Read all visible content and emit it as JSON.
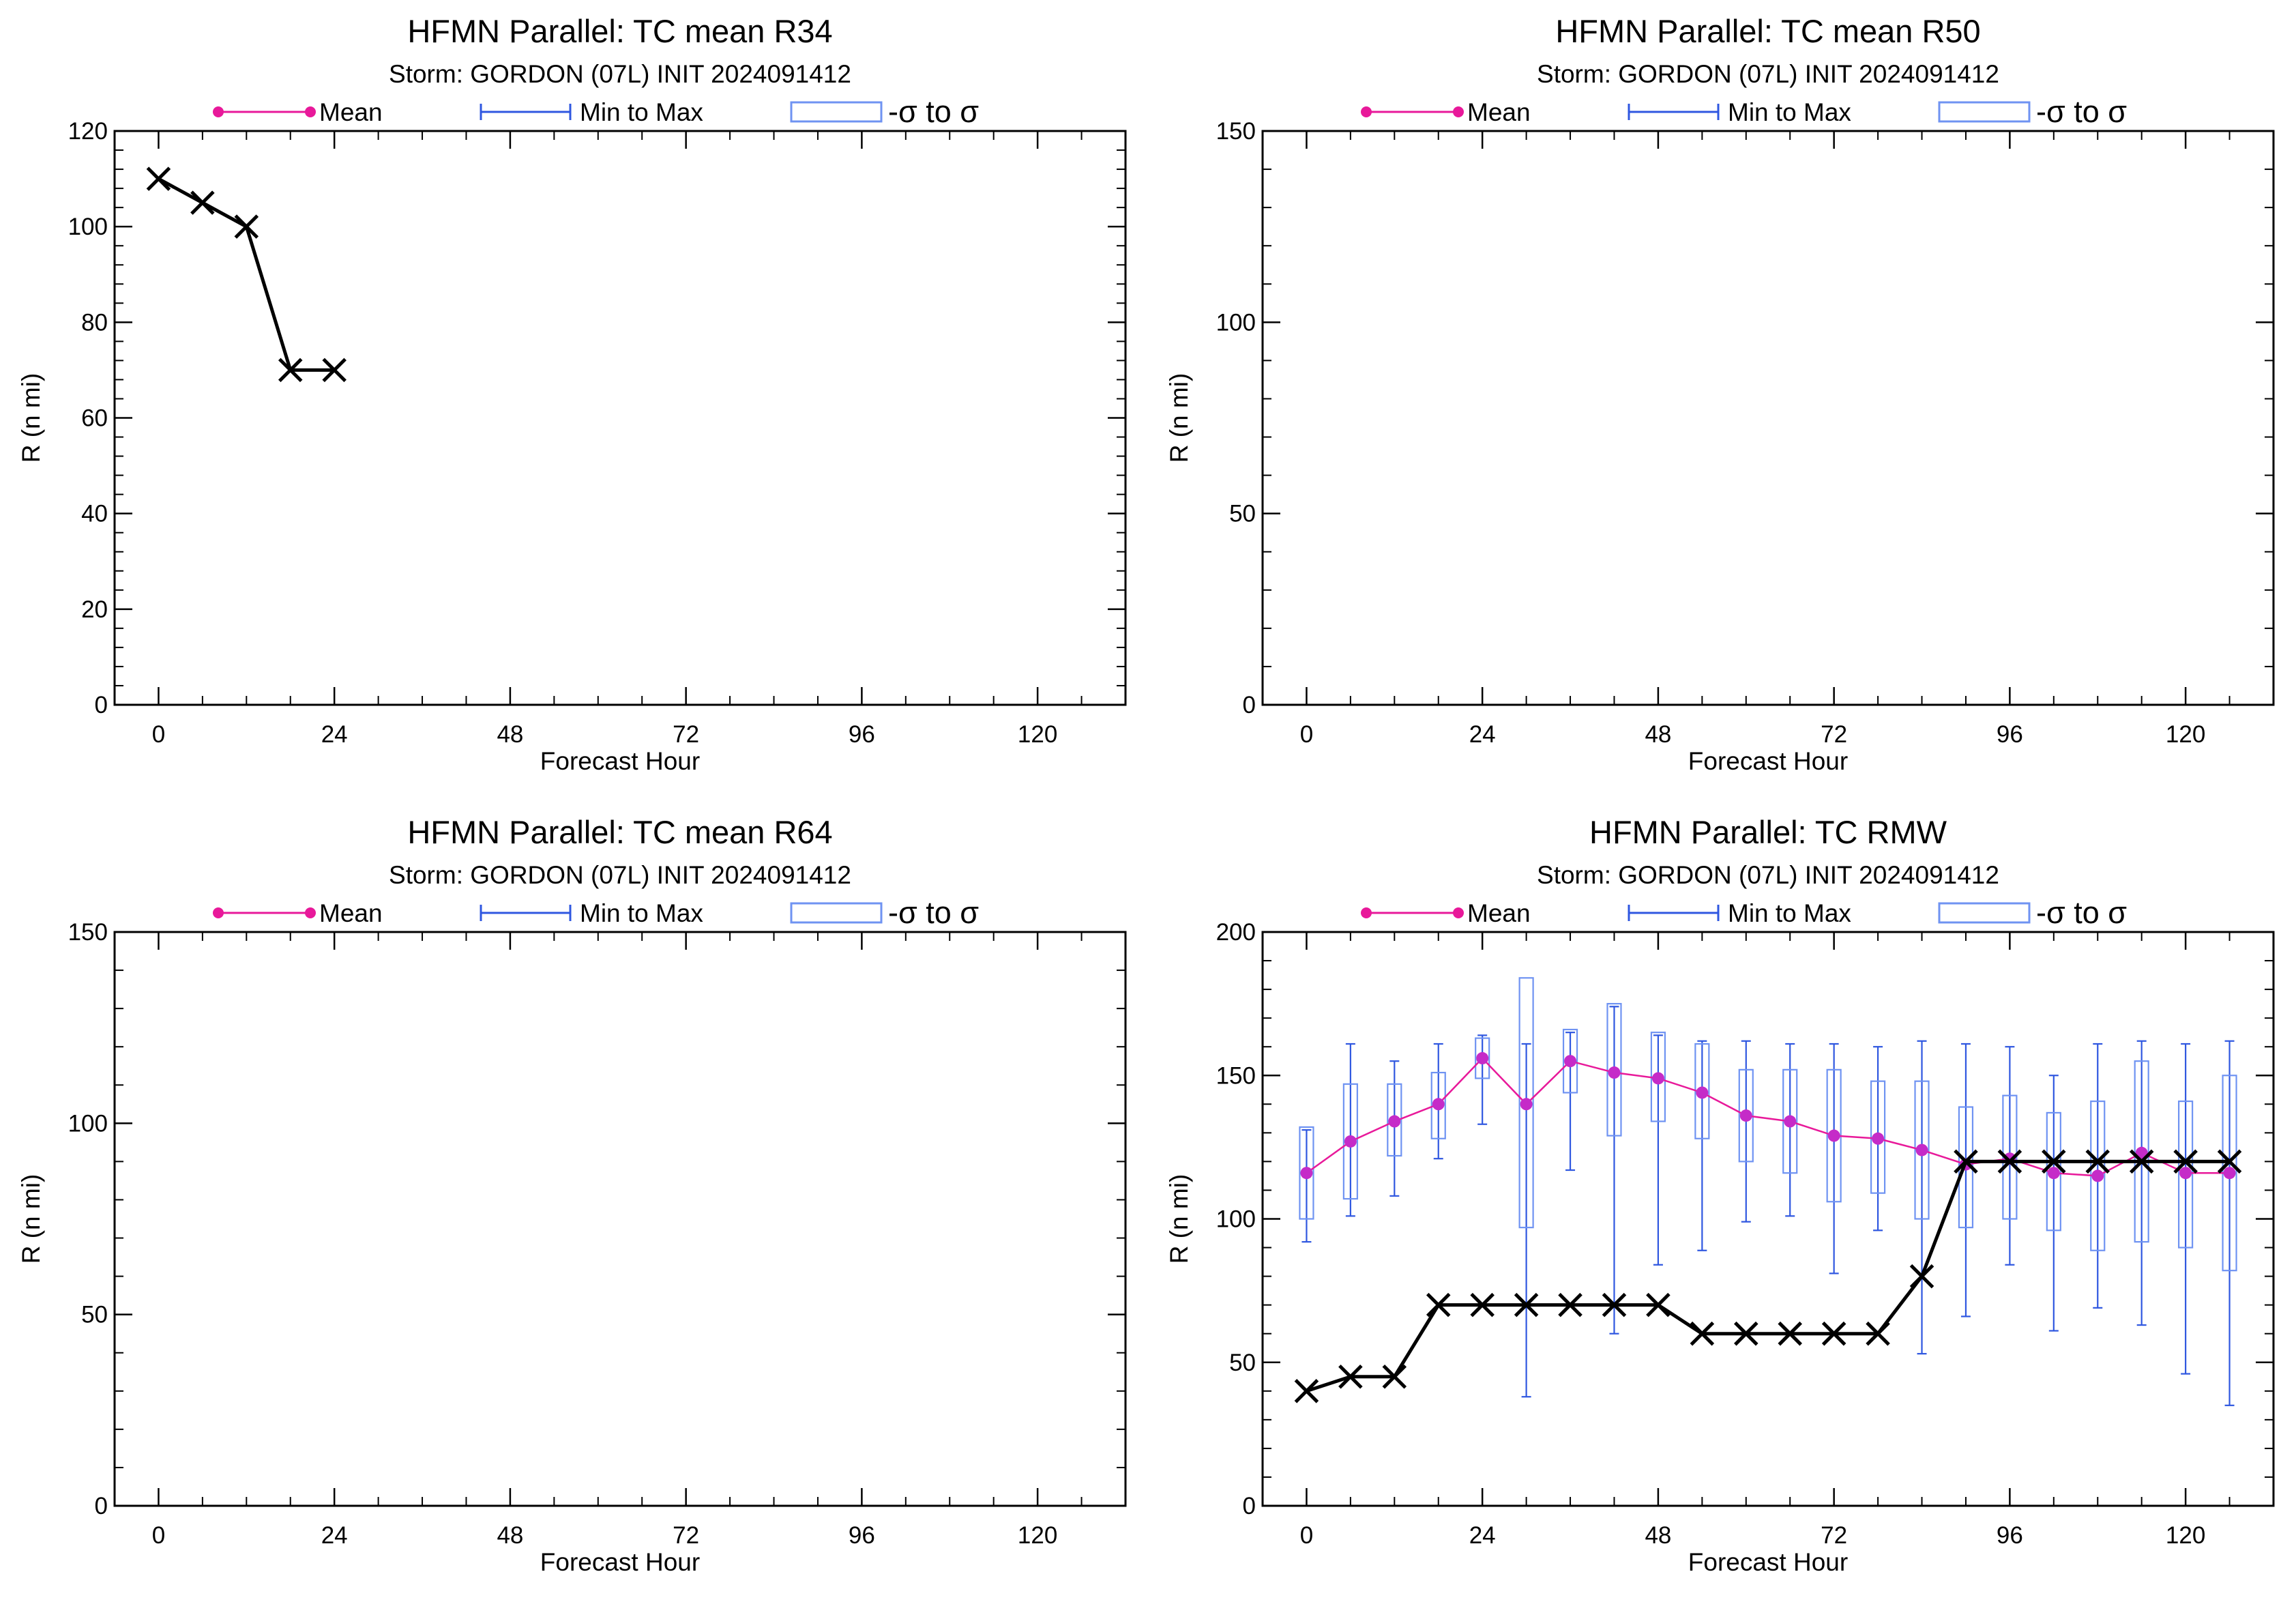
{
  "colors": {
    "mean": "#e8199a",
    "mean_marker": "#c52bc8",
    "minmax": "#2f57e0",
    "sigma_box": "#6f93f2",
    "obs": "#000000"
  },
  "legend": {
    "mean_label": "Mean",
    "minmax_label": "Min to Max",
    "sigma_label": "-σ to σ"
  },
  "chart_data": [
    {
      "type": "line",
      "title": "HFMN Parallel: TC mean R34",
      "subtitle": "Storm: GORDON (07L) INIT 2024091412",
      "xlabel": "Forecast Hour",
      "ylabel": "R (n mi)",
      "xlim": [
        -6,
        132
      ],
      "ylim": [
        0,
        120
      ],
      "xticks": [
        0,
        24,
        48,
        72,
        96,
        120
      ],
      "yticks": [
        0,
        20,
        40,
        60,
        80,
        100,
        120
      ],
      "legend_position": "top",
      "observed": {
        "x": [
          0,
          6,
          12,
          18,
          24
        ],
        "y": [
          110,
          105,
          100,
          70,
          70
        ]
      },
      "ensemble": null
    },
    {
      "type": "line",
      "title": "HFMN Parallel: TC mean R50",
      "subtitle": "Storm: GORDON (07L) INIT 2024091412",
      "xlabel": "Forecast Hour",
      "ylabel": "R (n mi)",
      "xlim": [
        -6,
        132
      ],
      "ylim": [
        0,
        150
      ],
      "xticks": [
        0,
        24,
        48,
        72,
        96,
        120
      ],
      "yticks": [
        0,
        50,
        100,
        150
      ],
      "legend_position": "top",
      "observed": null,
      "ensemble": null
    },
    {
      "type": "line",
      "title": "HFMN Parallel: TC mean R64",
      "subtitle": "Storm: GORDON (07L) INIT 2024091412",
      "xlabel": "Forecast Hour",
      "ylabel": "R (n mi)",
      "xlim": [
        -6,
        132
      ],
      "ylim": [
        0,
        150
      ],
      "xticks": [
        0,
        24,
        48,
        72,
        96,
        120
      ],
      "yticks": [
        0,
        50,
        100,
        150
      ],
      "legend_position": "top",
      "observed": null,
      "ensemble": null
    },
    {
      "type": "line",
      "title": "HFMN Parallel: TC RMW",
      "subtitle": "Storm: GORDON (07L) INIT 2024091412",
      "xlabel": "Forecast Hour",
      "ylabel": "R (n mi)",
      "xlim": [
        -6,
        132
      ],
      "ylim": [
        0,
        200
      ],
      "xticks": [
        0,
        24,
        48,
        72,
        96,
        120
      ],
      "yticks": [
        0,
        50,
        100,
        150,
        200
      ],
      "legend_position": "top",
      "observed": {
        "x": [
          0,
          6,
          12,
          18,
          24,
          30,
          36,
          42,
          48,
          54,
          60,
          66,
          72,
          78,
          84,
          90,
          96,
          102,
          108,
          114,
          120,
          126
        ],
        "y": [
          40,
          45,
          45,
          70,
          70,
          70,
          70,
          70,
          70,
          60,
          60,
          60,
          60,
          60,
          80,
          120,
          120,
          120,
          120,
          120,
          120,
          120
        ]
      },
      "ensemble": {
        "x": [
          0,
          6,
          12,
          18,
          24,
          30,
          36,
          42,
          48,
          54,
          60,
          66,
          72,
          78,
          84,
          90,
          96,
          102,
          108,
          114,
          120,
          126
        ],
        "mean": [
          116,
          127,
          134,
          140,
          156,
          140,
          155,
          151,
          149,
          144,
          136,
          134,
          129,
          128,
          124,
          119,
          121,
          116,
          115,
          123,
          116,
          116
        ],
        "min": [
          92,
          101,
          108,
          121,
          133,
          38,
          117,
          60,
          84,
          89,
          99,
          101,
          81,
          96,
          53,
          66,
          84,
          61,
          69,
          63,
          46,
          35
        ],
        "max": [
          131,
          161,
          155,
          161,
          164,
          161,
          165,
          174,
          164,
          162,
          162,
          161,
          161,
          160,
          162,
          161,
          160,
          150,
          161,
          162,
          161,
          162
        ],
        "sigma_low": [
          100,
          107,
          122,
          128,
          149,
          97,
          144,
          129,
          134,
          128,
          120,
          116,
          106,
          109,
          100,
          97,
          100,
          96,
          89,
          92,
          90,
          82
        ],
        "sigma_high": [
          132,
          147,
          147,
          151,
          163,
          184,
          166,
          175,
          165,
          161,
          152,
          152,
          152,
          148,
          148,
          139,
          143,
          137,
          141,
          155,
          141,
          150
        ]
      }
    }
  ]
}
